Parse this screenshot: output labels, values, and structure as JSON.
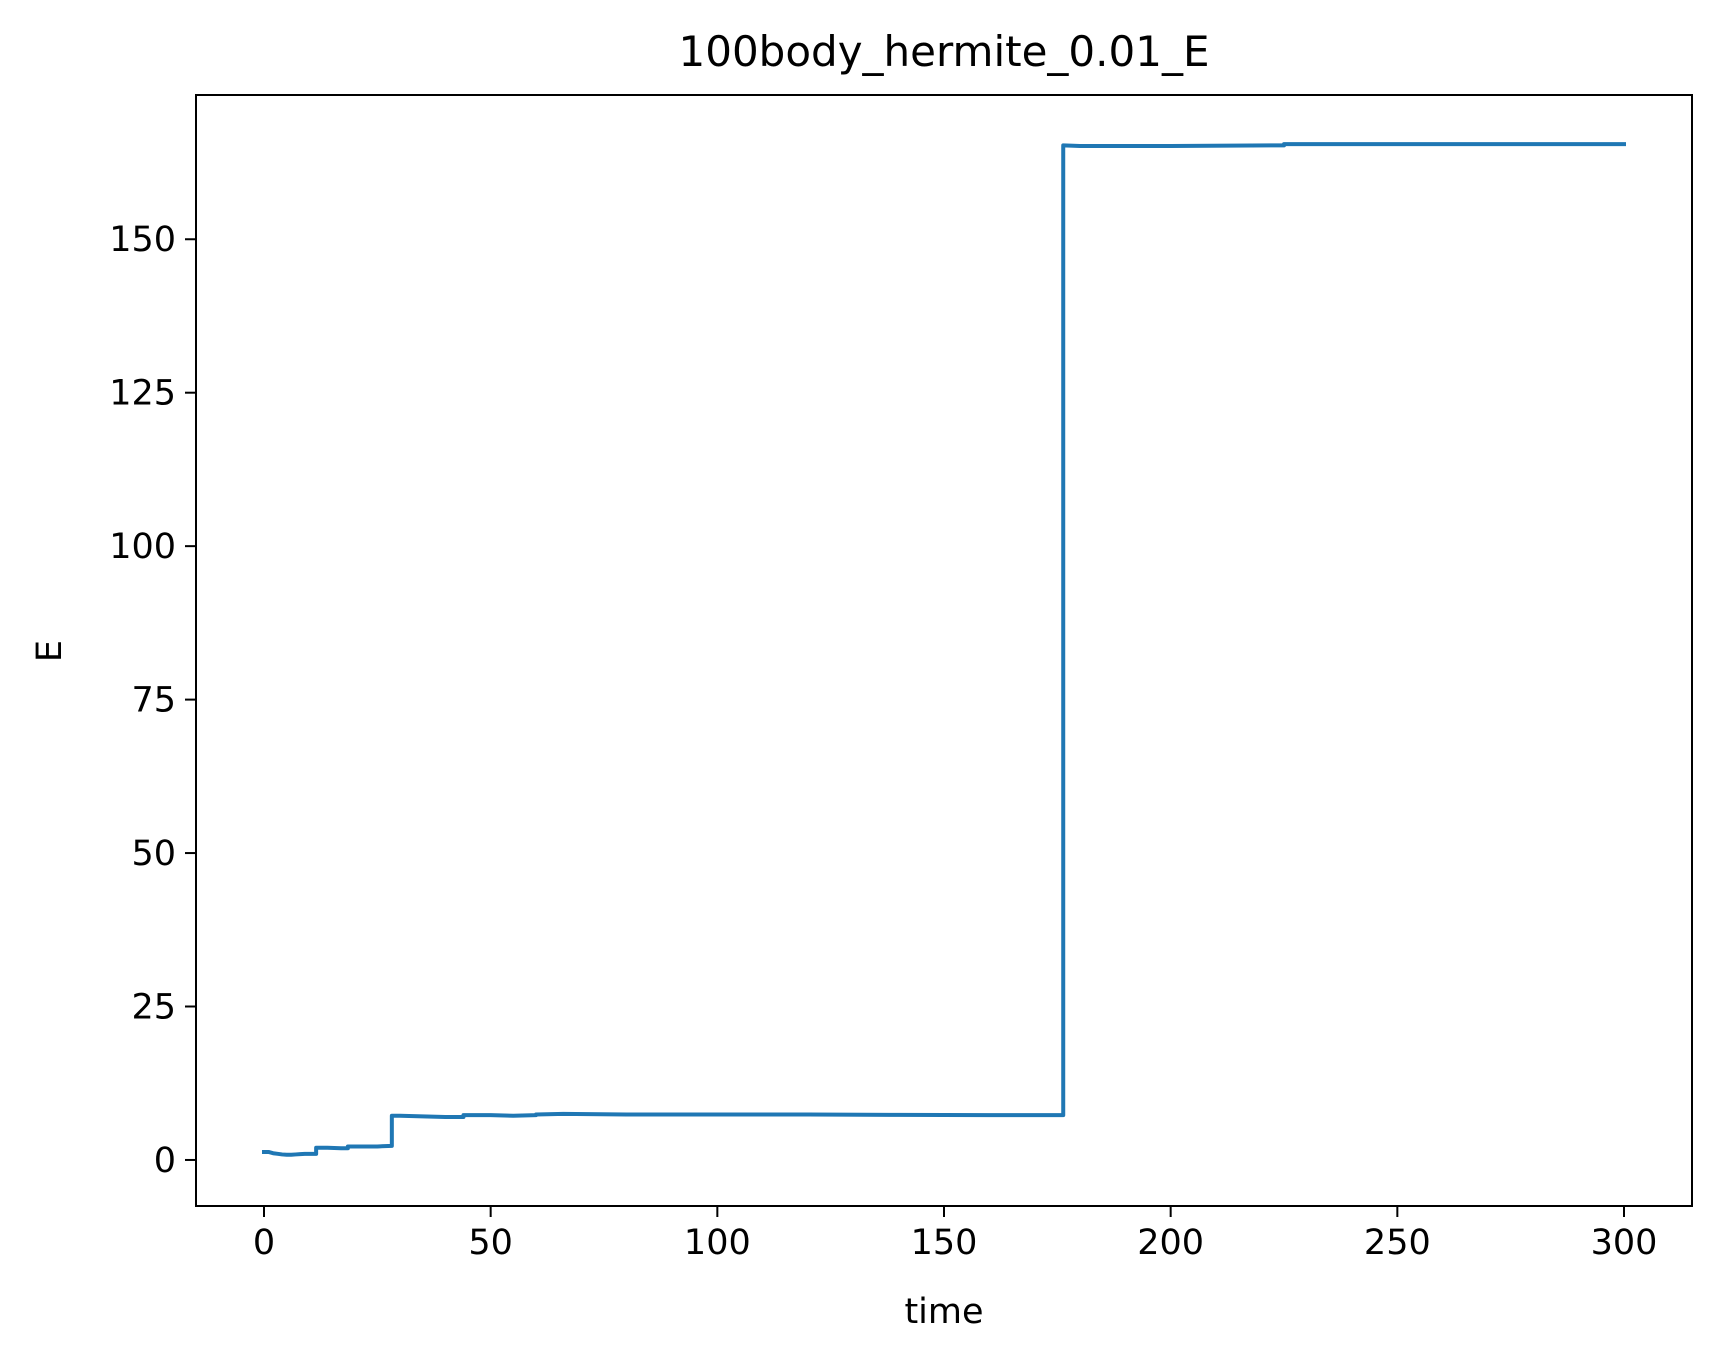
{
  "chart_data": {
    "type": "line",
    "title": "100body_hermite_0.01_E",
    "xlabel": "time",
    "ylabel": "E",
    "xlim": [
      -15,
      315
    ],
    "ylim": [
      -7.5,
      173.5
    ],
    "xticks": [
      0,
      50,
      100,
      150,
      200,
      250,
      300
    ],
    "yticks": [
      0,
      25,
      50,
      75,
      100,
      125,
      150
    ],
    "xtick_labels": [
      "0",
      "50",
      "100",
      "150",
      "200",
      "250",
      "300"
    ],
    "ytick_labels": [
      "0",
      "25",
      "50",
      "75",
      "100",
      "125",
      "150"
    ],
    "grid": false,
    "legend": "none",
    "series": [
      {
        "color": "#1f77b4",
        "x": [
          0,
          1,
          2,
          3,
          4,
          5,
          6,
          7,
          8,
          9,
          10,
          11.5,
          11.5,
          14,
          17,
          18.5,
          18.5,
          22,
          25,
          28.2,
          28.2,
          30,
          35,
          40,
          44,
          44,
          50,
          55,
          60,
          60,
          66,
          80,
          100,
          120,
          140,
          160,
          176.3,
          176.3,
          180,
          200,
          225,
          225,
          250,
          270,
          300
        ],
        "y": [
          1.3,
          1.3,
          1.1,
          1.0,
          0.9,
          0.85,
          0.85,
          0.9,
          0.95,
          1.0,
          1.0,
          1.0,
          2.0,
          2.0,
          1.9,
          1.9,
          2.2,
          2.2,
          2.2,
          2.3,
          7.2,
          7.2,
          7.1,
          7.0,
          7.0,
          7.3,
          7.3,
          7.2,
          7.3,
          7.4,
          7.5,
          7.4,
          7.4,
          7.4,
          7.35,
          7.3,
          7.3,
          165.3,
          165.2,
          165.2,
          165.3,
          165.5,
          165.5,
          165.5,
          165.5
        ]
      }
    ]
  }
}
